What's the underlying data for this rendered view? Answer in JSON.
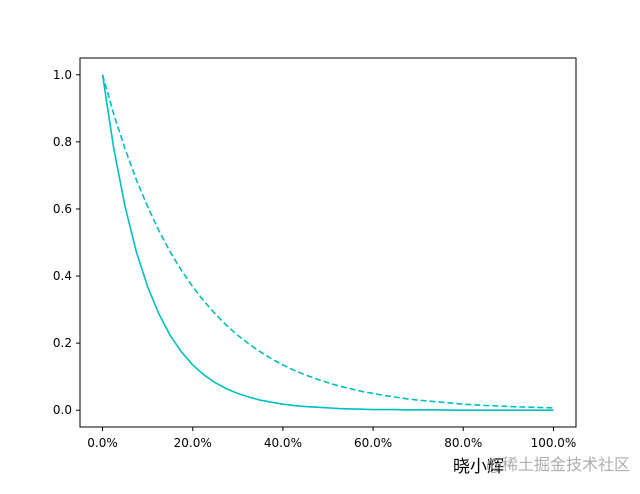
{
  "chart_data": {
    "type": "line",
    "x": [
      0,
      2.5,
      5,
      7.5,
      10,
      12.5,
      15,
      17.5,
      20,
      22.5,
      25,
      27.5,
      30,
      32.5,
      35,
      37.5,
      40,
      42.5,
      45,
      47.5,
      50,
      52.5,
      55,
      57.5,
      60,
      62.5,
      65,
      67.5,
      70,
      72.5,
      75,
      77.5,
      80,
      82.5,
      85,
      87.5,
      90,
      92.5,
      95,
      97.5,
      100
    ],
    "series": [
      {
        "color": "#00bfbf",
        "linestyle": "solid",
        "values": [
          1,
          0.779,
          0.607,
          0.472,
          0.368,
          0.287,
          0.223,
          0.174,
          0.135,
          0.105,
          0.082,
          0.064,
          0.05,
          0.039,
          0.03,
          0.024,
          0.018,
          0.014,
          0.011,
          0.009,
          0.007,
          0.005,
          0.004,
          0.003,
          0.002,
          0.002,
          0.002,
          0.001,
          0.001,
          0.001,
          0.001,
          0,
          0,
          0,
          0,
          0,
          0,
          0,
          0,
          0,
          0
        ]
      },
      {
        "color": "#00bfbf",
        "linestyle": "dashed",
        "values": [
          1,
          0.882,
          0.779,
          0.687,
          0.607,
          0.535,
          0.472,
          0.417,
          0.368,
          0.325,
          0.287,
          0.253,
          0.223,
          0.197,
          0.174,
          0.153,
          0.135,
          0.119,
          0.105,
          0.093,
          0.082,
          0.072,
          0.064,
          0.056,
          0.05,
          0.044,
          0.039,
          0.034,
          0.03,
          0.027,
          0.024,
          0.021,
          0.018,
          0.016,
          0.014,
          0.013,
          0.011,
          0.01,
          0.009,
          0.008,
          0.007
        ]
      }
    ],
    "xlim": [
      -5,
      105
    ],
    "xticks": [
      {
        "value": 0,
        "label": "0.0%"
      },
      {
        "value": 20,
        "label": "20.0%"
      },
      {
        "value": 40,
        "label": "40.0%"
      },
      {
        "value": 60,
        "label": "60.0%"
      },
      {
        "value": 80,
        "label": "80.0%"
      },
      {
        "value": 100,
        "label": "100.0%"
      }
    ],
    "ylim": [
      -0.05,
      1.05
    ],
    "yticks": [
      {
        "value": 0,
        "label": "0.0"
      },
      {
        "value": 0.2,
        "label": "0.2"
      },
      {
        "value": 0.4,
        "label": "0.4"
      },
      {
        "value": 0.6,
        "label": "0.6"
      },
      {
        "value": 0.8,
        "label": "0.8"
      },
      {
        "value": 1,
        "label": "1.0"
      }
    ],
    "grid": false,
    "annotations": [
      "晓小辉",
      "@稀土掘金技术社区"
    ]
  }
}
